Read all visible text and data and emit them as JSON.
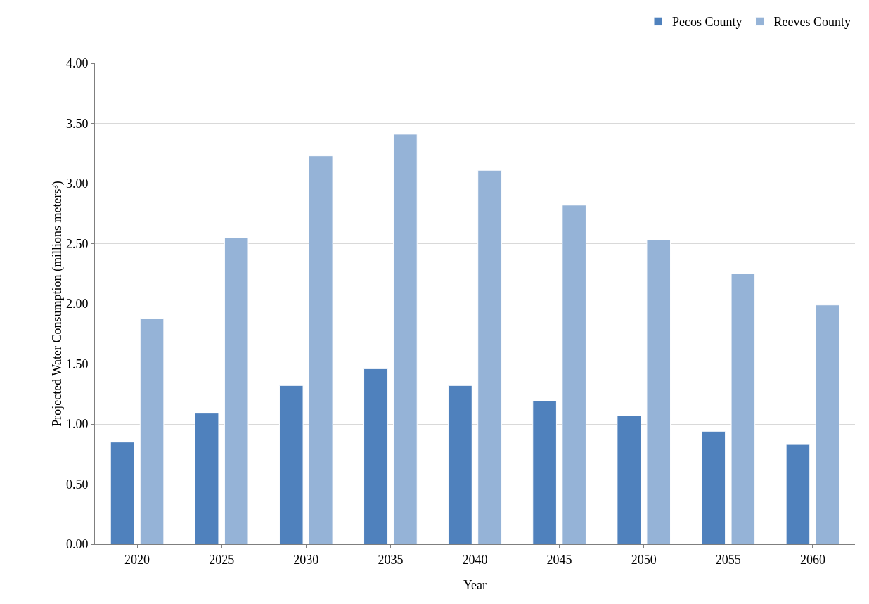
{
  "chart_data": {
    "type": "bar",
    "xlabel": "Year",
    "ylabel": "Projected Water Consumption (millions meters³)",
    "categories": [
      "2020",
      "2025",
      "2030",
      "2035",
      "2040",
      "2045",
      "2050",
      "2055",
      "2060"
    ],
    "series": [
      {
        "name": "Pecos County",
        "color": "#4f81bd",
        "values": [
          0.85,
          1.09,
          1.32,
          1.46,
          1.32,
          1.19,
          1.07,
          0.94,
          0.83
        ]
      },
      {
        "name": "Reeves County",
        "color": "#95b3d7",
        "values": [
          1.88,
          2.55,
          3.23,
          3.41,
          3.11,
          2.82,
          2.53,
          2.25,
          1.99
        ]
      }
    ],
    "ylim": [
      0,
      4
    ],
    "yticks": [
      {
        "value": 0,
        "label": "0.00"
      },
      {
        "value": 0.5,
        "label": "0.50"
      },
      {
        "value": 1,
        "label": "1.00"
      },
      {
        "value": 1.5,
        "label": "1.50"
      },
      {
        "value": 2,
        "label": "2.00"
      },
      {
        "value": 2.5,
        "label": "2.50"
      },
      {
        "value": 3,
        "label": "3.00"
      },
      {
        "value": 3.5,
        "label": "3.50"
      },
      {
        "value": 4,
        "label": "4.00"
      }
    ],
    "grid": "y",
    "legend": "top right"
  }
}
